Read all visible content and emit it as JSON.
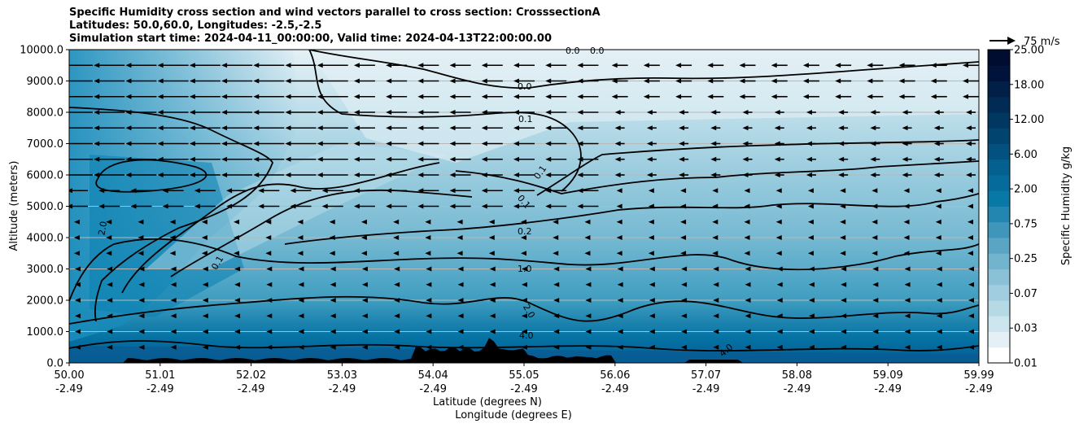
{
  "title_lines": [
    "Specific Humidity cross section and wind vectors parallel to cross section: CrosssectionA",
    "Latitudes: 50.0,60.0, Longitudes: -2.5,-2.5",
    "Simulation start time: 2024-04-11_00:00:00, Valid time: 2024-04-13T22:00:00.00"
  ],
  "quiver_key": "75 m/s",
  "colorbar_label": "Specific Humidity g/kg",
  "chart_data": {
    "type": "contourf",
    "title": "Specific Humidity cross section and wind vectors parallel to cross section: CrosssectionA",
    "xlabel_lat": "Latitude (degrees N)",
    "xlabel_lon": "Longitude (degrees E)",
    "ylabel": "Altitude (meters)",
    "ylim": [
      0,
      10000
    ],
    "grid": "horizontal",
    "x_ticks": [
      {
        "lat": "50.00",
        "lon": "-2.49"
      },
      {
        "lat": "51.01",
        "lon": "-2.49"
      },
      {
        "lat": "52.02",
        "lon": "-2.49"
      },
      {
        "lat": "53.03",
        "lon": "-2.49"
      },
      {
        "lat": "54.04",
        "lon": "-2.49"
      },
      {
        "lat": "55.05",
        "lon": "-2.49"
      },
      {
        "lat": "56.06",
        "lon": "-2.49"
      },
      {
        "lat": "57.07",
        "lon": "-2.49"
      },
      {
        "lat": "58.08",
        "lon": "-2.49"
      },
      {
        "lat": "59.09",
        "lon": "-2.49"
      },
      {
        "lat": "59.99",
        "lon": "-2.49"
      }
    ],
    "y_ticks": [
      "0.0",
      "1000.0",
      "2000.0",
      "3000.0",
      "4000.0",
      "5000.0",
      "6000.0",
      "7000.0",
      "8000.0",
      "9000.0",
      "10000.0"
    ],
    "colorbar_ticks": [
      "0.01",
      "0.03",
      "0.07",
      "0.25",
      "0.75",
      "2.00",
      "6.00",
      "12.00",
      "18.00",
      "25.00"
    ],
    "contour_labels": [
      "0.0",
      "0.0",
      "0.0",
      "0.1",
      "0.1",
      "0.1",
      "0.1",
      "0.2",
      "1.0",
      "2.0",
      "4.0",
      "4.0",
      "2.0"
    ],
    "quiver_reference": "75 m/s",
    "colors": {
      "fill_high": "#02589a",
      "fill_mid": "#0b86b5",
      "fill_low": "#9fd0e0",
      "fill_very_low": "#e8f3f7",
      "terrain": "#000000"
    }
  }
}
